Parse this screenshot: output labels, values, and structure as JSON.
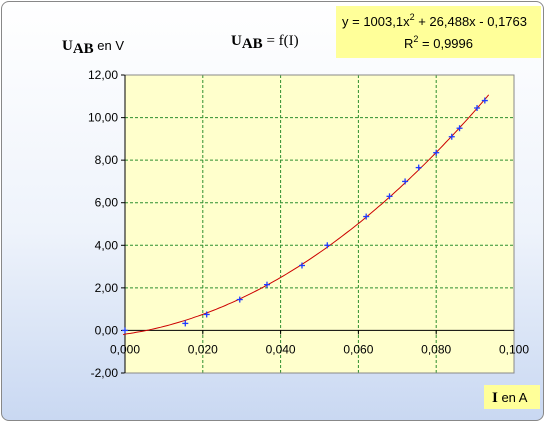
{
  "chart_data": {
    "type": "scatter",
    "title": "U_AB = f(I)",
    "title_parts": {
      "main": "U",
      "sub": "AB",
      "rest": " = f(I)"
    },
    "ylabel_parts": {
      "main": "U",
      "sub": "AB",
      "rest": " en V"
    },
    "xlabel_parts": {
      "main": "I",
      "rest": " en A"
    },
    "xlim": [
      0,
      0.1
    ],
    "ylim": [
      -2,
      12
    ],
    "x_ticks": [
      "0,000",
      "0,020",
      "0,040",
      "0,060",
      "0,080",
      "0,100"
    ],
    "y_ticks": [
      "-2,00",
      "0,00",
      "2,00",
      "4,00",
      "6,00",
      "8,00",
      "10,00",
      "12,00"
    ],
    "grid": true,
    "series": [
      {
        "type": "scatter",
        "x": [
          0.0,
          0.0155,
          0.021,
          0.0295,
          0.0365,
          0.0455,
          0.052,
          0.062,
          0.068,
          0.072,
          0.0755,
          0.08,
          0.084,
          0.086,
          0.0905,
          0.0925
        ],
        "y": [
          0.0,
          0.33,
          0.75,
          1.45,
          2.15,
          3.05,
          4.0,
          5.35,
          6.3,
          7.0,
          7.65,
          8.35,
          9.1,
          9.5,
          10.45,
          10.8
        ]
      }
    ],
    "trendline": {
      "type": "polynomial",
      "coefficients": [
        1003.1,
        26.488,
        -0.1763
      ],
      "equation_line1": "y = 1003,1x",
      "equation_sup": "2",
      "equation_line1_rest": " + 26,488x - 0,1763",
      "r2_prefix": "R",
      "r2_sup": "2",
      "r2_rest": " = 0,9996"
    },
    "colors": {
      "plot_background": "#ffffcc",
      "grid": "#2f8f2f",
      "marker": "#1f3cff",
      "trendline": "#cc0000",
      "equation_box": "#ffff99"
    }
  }
}
